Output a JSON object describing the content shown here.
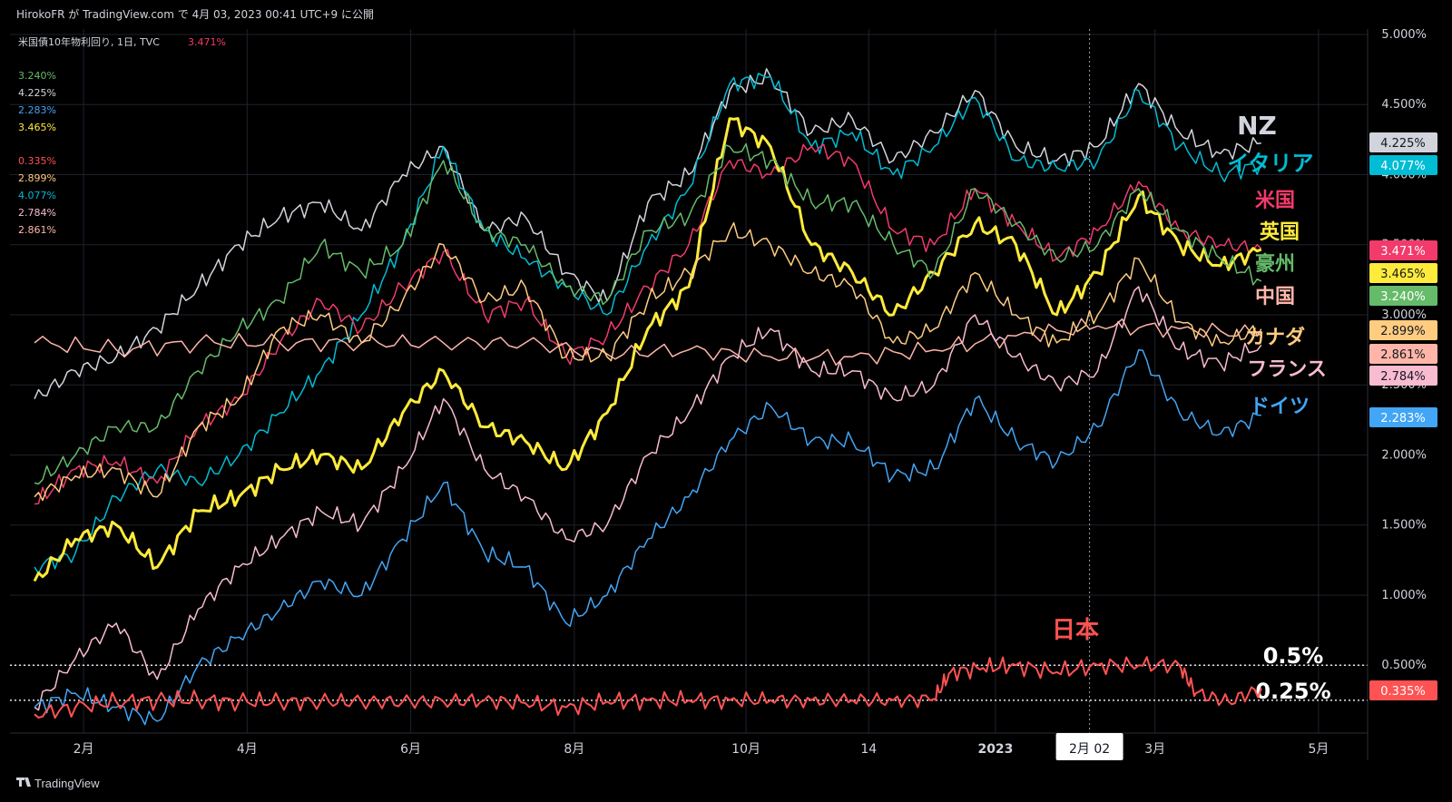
{
  "header": {
    "attribution": "HirokoFR が TradingView.com で 4月 03, 2023 00:41 UTC+9 に公開",
    "symbol_title": "米国債10年物利回り, 1日, TVC",
    "symbol_value": "3.471%"
  },
  "footer": {
    "brand": "TradingView"
  },
  "colors": {
    "background": "#000000",
    "frame": "#0c0e15",
    "grid": "#2a2e39",
    "NZ": "#d1d4dc",
    "Italy": "#00bcd4",
    "US": "#f23a6b",
    "UK": "#ffeb3b",
    "Australia": "#66bb6a",
    "China": "#ffb6a8",
    "Canada": "#ffcc80",
    "France": "#f8bbd0",
    "Germany": "#42a5f5",
    "Japan": "#ff5252"
  },
  "chart_data": {
    "type": "line",
    "title": "米国債10年物利回り, 1日, TVC",
    "ylim": [
      0.1,
      5.0
    ],
    "y_ticks": [
      "5.000%",
      "4.500%",
      "4.000%",
      "3.500%",
      "3.000%",
      "2.500%",
      "2.000%",
      "1.500%",
      "1.000%",
      "0.500%"
    ],
    "y_tick_values": [
      5.0,
      4.5,
      4.0,
      3.5,
      3.0,
      2.5,
      2.0,
      1.5,
      1.0,
      0.5
    ],
    "x_ticks": [
      "2月",
      "4月",
      "6月",
      "8月",
      "10月",
      "14",
      "2023",
      "3月",
      "5月"
    ],
    "x_tick_positions": [
      0.6,
      2.6,
      4.6,
      6.6,
      8.7,
      10.2,
      11.75,
      13.7,
      15.7
    ],
    "x_range": [
      -0.3,
      16.3
    ],
    "crosshair": {
      "x": 12.9,
      "label": "2月 02"
    },
    "reference_lines": [
      {
        "value": 0.5,
        "label": "0.5%"
      },
      {
        "value": 0.25,
        "label": "0.25%"
      }
    ],
    "annotation_japan": "日本",
    "legend_values": [
      "3.240%",
      "4.225%",
      "2.283%",
      "3.465%",
      "0.335%",
      "2.899%",
      "4.077%",
      "2.784%",
      "2.861%"
    ],
    "legend_colors": [
      "#66bb6a",
      "#d1d4dc",
      "#42a5f5",
      "#ffeb3b",
      "#ff5252",
      "#ffcc80",
      "#00bcd4",
      "#f8bbd0",
      "#ffb6a8"
    ],
    "series": [
      {
        "key": "NZ",
        "name": "NZ",
        "label": "NZ",
        "last": "4.225%",
        "color": "#d1d4dc",
        "width": 1.5,
        "x": [
          0,
          0.5,
          1,
          1.5,
          2,
          2.5,
          3,
          3.5,
          4,
          4.5,
          5,
          5.5,
          6,
          6.5,
          7,
          7.5,
          8,
          8.5,
          9,
          9.5,
          10,
          10.5,
          11,
          11.5,
          12,
          12.5,
          13,
          13.5,
          14,
          14.5,
          15
        ],
        "values": [
          2.4,
          2.6,
          2.7,
          2.9,
          3.2,
          3.5,
          3.7,
          3.8,
          3.6,
          4.0,
          4.2,
          3.6,
          3.7,
          3.3,
          3.1,
          3.8,
          4.0,
          4.6,
          4.7,
          4.3,
          4.4,
          4.1,
          4.3,
          4.6,
          4.2,
          4.1,
          4.2,
          4.65,
          4.3,
          4.15,
          4.225
        ]
      },
      {
        "key": "Italy",
        "name": "イタリア",
        "label": "イタリア",
        "last": "4.077%",
        "color": "#00bcd4",
        "width": 1.5,
        "x": [
          0,
          0.5,
          1,
          1.5,
          2,
          2.5,
          3,
          3.5,
          4,
          4.5,
          5,
          5.5,
          6,
          6.5,
          7,
          7.5,
          8,
          8.5,
          9,
          9.5,
          10,
          10.5,
          11,
          11.5,
          12,
          12.5,
          13,
          13.5,
          14,
          14.5,
          15
        ],
        "values": [
          1.2,
          1.3,
          1.7,
          1.9,
          1.8,
          2.0,
          2.3,
          2.6,
          3.0,
          3.5,
          4.2,
          3.6,
          3.4,
          3.2,
          3.0,
          3.5,
          3.9,
          4.65,
          4.7,
          4.2,
          4.3,
          4.0,
          4.2,
          4.55,
          4.1,
          4.05,
          4.1,
          4.6,
          4.2,
          4.0,
          4.077
        ]
      },
      {
        "key": "US",
        "name": "米国",
        "label": "米国",
        "last": "3.471%",
        "color": "#f23a6b",
        "width": 1.5,
        "x": [
          0,
          0.5,
          1,
          1.5,
          2,
          2.5,
          3,
          3.5,
          4,
          4.5,
          5,
          5.5,
          6,
          6.5,
          7,
          7.5,
          8,
          8.5,
          9,
          9.5,
          10,
          10.5,
          11,
          11.5,
          12,
          12.5,
          13,
          13.5,
          14,
          14.5,
          15
        ],
        "values": [
          1.65,
          1.9,
          1.95,
          1.8,
          2.2,
          2.4,
          2.8,
          3.1,
          2.9,
          3.2,
          3.45,
          3.0,
          3.1,
          2.7,
          2.85,
          3.2,
          3.5,
          4.1,
          4.0,
          4.2,
          4.1,
          3.6,
          3.5,
          3.9,
          3.65,
          3.4,
          3.6,
          3.95,
          3.6,
          3.5,
          3.471
        ]
      },
      {
        "key": "UK",
        "name": "英国",
        "label": "英国",
        "last": "3.465%",
        "color": "#ffeb3b",
        "width": 3,
        "x": [
          0,
          0.5,
          1,
          1.5,
          2,
          2.5,
          3,
          3.5,
          4,
          4.5,
          5,
          5.5,
          6,
          6.5,
          7,
          7.5,
          8,
          8.5,
          9,
          9.5,
          10,
          10.5,
          11,
          11.5,
          12,
          12.5,
          13,
          13.5,
          14,
          14.5,
          15
        ],
        "values": [
          1.1,
          1.4,
          1.5,
          1.2,
          1.6,
          1.7,
          1.9,
          2.0,
          1.9,
          2.3,
          2.6,
          2.2,
          2.1,
          1.9,
          2.3,
          2.9,
          3.2,
          4.4,
          4.2,
          3.5,
          3.3,
          3.0,
          3.3,
          3.65,
          3.5,
          3.0,
          3.3,
          3.85,
          3.5,
          3.35,
          3.465
        ]
      },
      {
        "key": "Australia",
        "name": "豪州",
        "label": "豪州",
        "last": "3.240%",
        "color": "#66bb6a",
        "width": 1.5,
        "x": [
          0,
          0.5,
          1,
          1.5,
          2,
          2.5,
          3,
          3.5,
          4,
          4.5,
          5,
          5.5,
          6,
          6.5,
          7,
          7.5,
          8,
          8.5,
          9,
          9.5,
          10,
          10.5,
          11,
          11.5,
          12,
          12.5,
          13,
          13.5,
          14,
          14.5,
          15
        ],
        "values": [
          1.8,
          2.0,
          2.2,
          2.2,
          2.6,
          2.9,
          3.1,
          3.5,
          3.3,
          3.5,
          4.1,
          3.6,
          3.5,
          3.2,
          3.1,
          3.6,
          3.7,
          4.2,
          4.1,
          3.8,
          3.8,
          3.5,
          3.3,
          3.9,
          3.65,
          3.4,
          3.5,
          3.9,
          3.6,
          3.4,
          3.24
        ]
      },
      {
        "key": "China",
        "name": "中国",
        "label": "中国",
        "last": "2.861%",
        "color": "#ffb6a8",
        "width": 1.5,
        "x": [
          0,
          1,
          2,
          3,
          4,
          5,
          6,
          7,
          8,
          9,
          10,
          11,
          12,
          13,
          14,
          15
        ],
        "values": [
          2.8,
          2.75,
          2.8,
          2.8,
          2.8,
          2.8,
          2.8,
          2.72,
          2.75,
          2.7,
          2.7,
          2.75,
          2.85,
          2.92,
          2.9,
          2.861
        ]
      },
      {
        "key": "Canada",
        "name": "カナダ",
        "label": "カナダ",
        "last": "2.899%",
        "color": "#ffcc80",
        "width": 1.5,
        "x": [
          0,
          0.5,
          1,
          1.5,
          2,
          2.5,
          3,
          3.5,
          4,
          4.5,
          5,
          5.5,
          6,
          6.5,
          7,
          7.5,
          8,
          8.5,
          9,
          9.5,
          10,
          10.5,
          11,
          11.5,
          12,
          12.5,
          13,
          13.5,
          14,
          14.5,
          15
        ],
        "values": [
          1.7,
          1.85,
          1.9,
          1.7,
          2.2,
          2.4,
          2.9,
          3.0,
          2.8,
          3.1,
          3.5,
          3.1,
          3.2,
          2.7,
          2.7,
          3.1,
          3.3,
          3.6,
          3.5,
          3.3,
          3.2,
          2.8,
          2.9,
          3.3,
          3.0,
          2.8,
          3.0,
          3.4,
          2.95,
          2.8,
          2.899
        ]
      },
      {
        "key": "France",
        "name": "フランス",
        "label": "フランス",
        "last": "2.784%",
        "color": "#f8bbd0",
        "width": 1.5,
        "x": [
          0,
          0.5,
          1,
          1.5,
          2,
          2.5,
          3,
          3.5,
          4,
          4.5,
          5,
          5.5,
          6,
          6.5,
          7,
          7.5,
          8,
          8.5,
          9,
          9.5,
          10,
          10.5,
          11,
          11.5,
          12,
          12.5,
          13,
          13.5,
          14,
          14.5,
          15
        ],
        "values": [
          0.2,
          0.55,
          0.8,
          0.4,
          0.9,
          1.2,
          1.4,
          1.6,
          1.5,
          1.9,
          2.4,
          1.9,
          1.7,
          1.4,
          1.5,
          2.0,
          2.3,
          2.7,
          2.9,
          2.6,
          2.6,
          2.4,
          2.5,
          3.0,
          2.7,
          2.5,
          2.6,
          3.2,
          2.75,
          2.65,
          2.784
        ]
      },
      {
        "key": "Germany",
        "name": "ドイツ",
        "label": "ドイツ",
        "last": "2.283%",
        "color": "#42a5f5",
        "width": 1.5,
        "x": [
          0,
          0.5,
          1,
          1.5,
          2,
          2.5,
          3,
          3.5,
          4,
          4.5,
          5,
          5.5,
          6,
          6.5,
          7,
          7.5,
          8,
          8.5,
          9,
          9.5,
          10,
          10.5,
          11,
          11.5,
          12,
          12.5,
          13,
          13.5,
          14,
          14.5,
          15
        ],
        "values": [
          0.2,
          0.3,
          0.2,
          0.1,
          0.5,
          0.7,
          0.9,
          1.1,
          1.0,
          1.4,
          1.8,
          1.3,
          1.2,
          0.8,
          1.0,
          1.4,
          1.7,
          2.1,
          2.35,
          2.1,
          2.1,
          1.85,
          1.9,
          2.4,
          2.1,
          1.95,
          2.2,
          2.75,
          2.3,
          2.15,
          2.283
        ]
      },
      {
        "key": "Japan",
        "name": "日本",
        "label": "",
        "last": "0.335%",
        "color": "#ff5252",
        "width": 2,
        "x": [
          0,
          0.5,
          1,
          1.5,
          2,
          2.5,
          3,
          3.5,
          4,
          4.5,
          5,
          5.5,
          6,
          6.5,
          7,
          7.5,
          8,
          8.5,
          9,
          9.5,
          10,
          10.5,
          11,
          11.2,
          11.6,
          12,
          12.5,
          13,
          13.5,
          14,
          14.2,
          14.6,
          15
        ],
        "values": [
          0.15,
          0.2,
          0.24,
          0.25,
          0.25,
          0.24,
          0.24,
          0.24,
          0.24,
          0.24,
          0.24,
          0.25,
          0.23,
          0.2,
          0.24,
          0.25,
          0.25,
          0.25,
          0.25,
          0.25,
          0.25,
          0.25,
          0.26,
          0.45,
          0.48,
          0.5,
          0.45,
          0.5,
          0.5,
          0.5,
          0.3,
          0.24,
          0.335
        ]
      }
    ]
  }
}
